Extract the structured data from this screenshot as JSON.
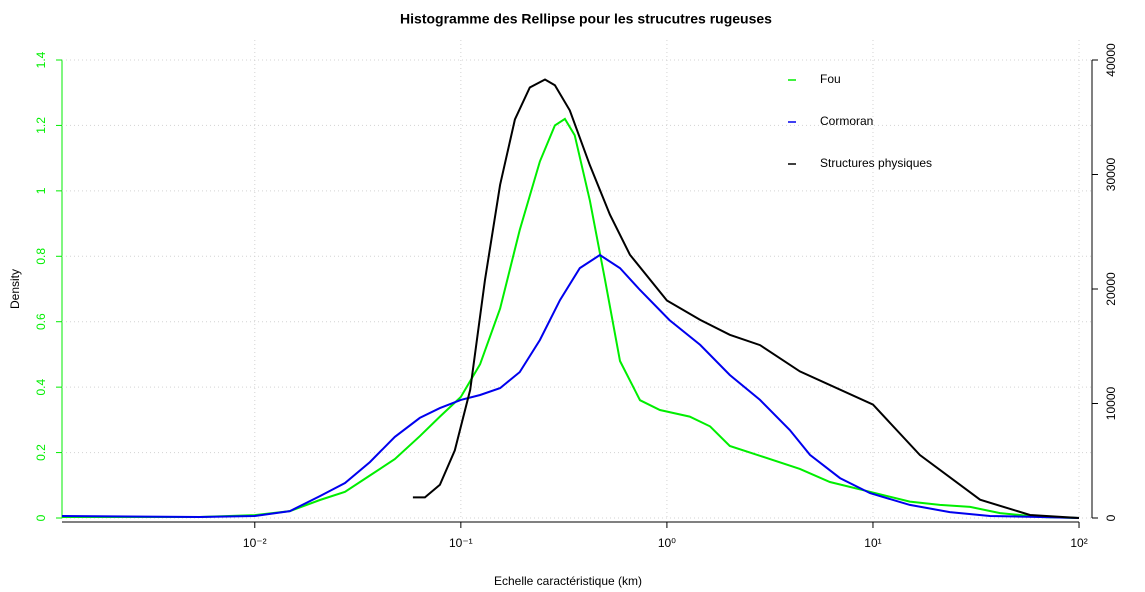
{
  "chart_data": {
    "type": "line",
    "title": "Histogramme des Rellipse pour les strucutres rugeuses",
    "x_label": "Echelle caractéristique (km)",
    "y_label": "Density",
    "log_x": true,
    "grid": true,
    "legend": "topright",
    "xlim": [
      0.00116,
      115.6
    ],
    "xticks": [
      {
        "value": 0.01,
        "label": "10⁻²"
      },
      {
        "value": 0.1,
        "label": "10⁻¹"
      },
      {
        "value": 1,
        "label": "10⁰"
      },
      {
        "value": 10,
        "label": "10¹"
      },
      {
        "value": 100,
        "label": "10²"
      }
    ],
    "ylim": [
      0,
      1.4
    ],
    "yticks": [
      0,
      0.2,
      0.4,
      0.6,
      0.8,
      1,
      1.2,
      1.4
    ],
    "y_axis_color": "#00ee00",
    "y2lim": [
      0,
      40000
    ],
    "y2ticks": [
      0,
      10000,
      20000,
      30000,
      40000
    ],
    "series": [
      {
        "name": "Fou",
        "color": "#00ee00",
        "x": [
          0.00116,
          0.0054,
          0.01,
          0.0148,
          0.0207,
          0.0274,
          0.0362,
          0.0478,
          0.0632,
          0.0791,
          0.1,
          0.124,
          0.155,
          0.193,
          0.242,
          0.286,
          0.32,
          0.357,
          0.423,
          0.5,
          0.592,
          0.74,
          0.925,
          1.29,
          1.62,
          2.02,
          2.83,
          4.42,
          6.18,
          9.67,
          15.1,
          21.1,
          29.6,
          41.4,
          64.7,
          100
        ],
        "values": [
          0.003,
          0.003,
          0.009,
          0.021,
          0.055,
          0.08,
          0.13,
          0.18,
          0.25,
          0.31,
          0.37,
          0.47,
          0.64,
          0.88,
          1.09,
          1.2,
          1.22,
          1.17,
          0.97,
          0.73,
          0.48,
          0.36,
          0.33,
          0.31,
          0.28,
          0.22,
          0.19,
          0.15,
          0.11,
          0.08,
          0.05,
          0.04,
          0.034,
          0.015,
          0.003,
          0
        ]
      },
      {
        "name": "Cormoran",
        "color": "#0000ee",
        "x": [
          0.00116,
          0.0054,
          0.01,
          0.0148,
          0.0207,
          0.0274,
          0.0362,
          0.0478,
          0.0632,
          0.0791,
          0.1,
          0.124,
          0.155,
          0.193,
          0.242,
          0.303,
          0.378,
          0.473,
          0.592,
          0.74,
          1.03,
          1.45,
          2.02,
          2.83,
          3.95,
          4.95,
          6.92,
          9.67,
          15.1,
          23.6,
          37.0,
          64.7,
          100
        ],
        "values": [
          0.006,
          0.003,
          0.006,
          0.021,
          0.067,
          0.107,
          0.171,
          0.248,
          0.306,
          0.336,
          0.361,
          0.376,
          0.397,
          0.446,
          0.544,
          0.666,
          0.764,
          0.804,
          0.764,
          0.697,
          0.605,
          0.529,
          0.437,
          0.361,
          0.269,
          0.193,
          0.122,
          0.076,
          0.04,
          0.018,
          0.006,
          0.003,
          0
        ]
      },
      {
        "name": "Structures physiques",
        "color": "#000000",
        "axis": "y2",
        "x": [
          0.0585,
          0.0669,
          0.0791,
          0.0935,
          0.111,
          0.131,
          0.155,
          0.183,
          0.216,
          0.256,
          0.286,
          0.338,
          0.423,
          0.529,
          0.661,
          1,
          1.45,
          2.02,
          2.83,
          4.42,
          10,
          16.9,
          33.1,
          57.8,
          100
        ],
        "values": [
          1800,
          1800,
          2900,
          5900,
          11200,
          20800,
          29100,
          34800,
          37600,
          38300,
          37800,
          35600,
          30800,
          26500,
          23000,
          19000,
          17300,
          16000,
          15100,
          12800,
          9900,
          5500,
          1600,
          260,
          0
        ]
      }
    ]
  }
}
